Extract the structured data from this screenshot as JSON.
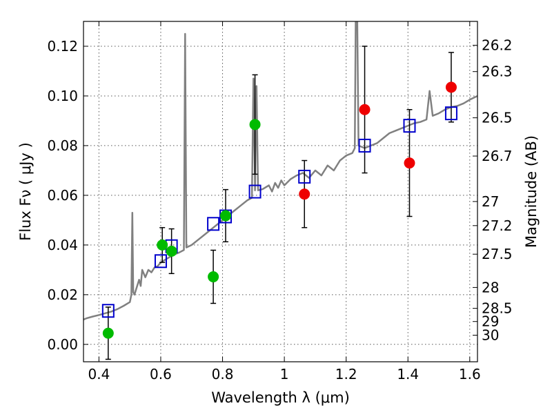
{
  "chart_data": {
    "type": "scatter",
    "xlabel": "Wavelength  λ (μm)",
    "ylabel": "Flux  Fν  ( μJy )",
    "y2label": "Magnitude (AB)",
    "xlim": [
      0.35,
      1.625
    ],
    "ylim": [
      -0.007,
      0.13
    ],
    "grid": true,
    "x_ticks": [
      {
        "value": 0.4,
        "label": "0.4"
      },
      {
        "value": 0.6,
        "label": "0.6"
      },
      {
        "value": 0.8,
        "label": "0.8"
      },
      {
        "value": 1.0,
        "label": "1"
      },
      {
        "value": 1.2,
        "label": "1.2"
      },
      {
        "value": 1.4,
        "label": "1.4"
      },
      {
        "value": 1.6,
        "label": "1.6"
      }
    ],
    "y_ticks": [
      {
        "value": 0.0,
        "label": "0.00"
      },
      {
        "value": 0.02,
        "label": "0.02"
      },
      {
        "value": 0.04,
        "label": "0.04"
      },
      {
        "value": 0.06,
        "label": "0.06"
      },
      {
        "value": 0.08,
        "label": "0.08"
      },
      {
        "value": 0.1,
        "label": "0.10"
      },
      {
        "value": 0.12,
        "label": "0.12"
      }
    ],
    "y2_ticks": [
      {
        "flux": 0.1204,
        "label": "26.2"
      },
      {
        "flux": 0.1098,
        "label": "26.3"
      },
      {
        "flux": 0.0912,
        "label": "26.5"
      },
      {
        "flux": 0.0758,
        "label": "26.7"
      },
      {
        "flux": 0.0575,
        "label": "27"
      },
      {
        "flux": 0.0478,
        "label": "27.2"
      },
      {
        "flux": 0.0363,
        "label": "27.5"
      },
      {
        "flux": 0.0229,
        "label": "28"
      },
      {
        "flux": 0.0145,
        "label": "28.5"
      },
      {
        "flux": 0.0092,
        "label": "29"
      },
      {
        "flux": 0.0037,
        "label": "30"
      }
    ],
    "spectrum": {
      "color": "#808080",
      "points": [
        [
          0.35,
          0.01
        ],
        [
          0.36,
          0.0105
        ],
        [
          0.38,
          0.0112
        ],
        [
          0.4,
          0.0118
        ],
        [
          0.42,
          0.0125
        ],
        [
          0.44,
          0.0132
        ],
        [
          0.46,
          0.0142
        ],
        [
          0.48,
          0.0155
        ],
        [
          0.5,
          0.017
        ],
        [
          0.505,
          0.02
        ],
        [
          0.508,
          0.053
        ],
        [
          0.511,
          0.021
        ],
        [
          0.515,
          0.02
        ],
        [
          0.52,
          0.022
        ],
        [
          0.53,
          0.026
        ],
        [
          0.535,
          0.0235
        ],
        [
          0.54,
          0.03
        ],
        [
          0.55,
          0.027
        ],
        [
          0.56,
          0.03
        ],
        [
          0.57,
          0.029
        ],
        [
          0.58,
          0.031
        ],
        [
          0.59,
          0.0315
        ],
        [
          0.6,
          0.033
        ],
        [
          0.62,
          0.0345
        ],
        [
          0.64,
          0.036
        ],
        [
          0.66,
          0.037
        ],
        [
          0.675,
          0.038
        ],
        [
          0.679,
          0.125
        ],
        [
          0.683,
          0.039
        ],
        [
          0.7,
          0.04
        ],
        [
          0.72,
          0.042
        ],
        [
          0.74,
          0.044
        ],
        [
          0.76,
          0.046
        ],
        [
          0.78,
          0.048
        ],
        [
          0.8,
          0.05
        ],
        [
          0.82,
          0.052
        ],
        [
          0.84,
          0.054
        ],
        [
          0.86,
          0.056
        ],
        [
          0.88,
          0.058
        ],
        [
          0.895,
          0.059
        ],
        [
          0.9,
          0.107
        ],
        [
          0.905,
          0.062
        ],
        [
          0.91,
          0.104
        ],
        [
          0.915,
          0.062
        ],
        [
          0.93,
          0.0625
        ],
        [
          0.95,
          0.064
        ],
        [
          0.96,
          0.0615
        ],
        [
          0.97,
          0.065
        ],
        [
          0.98,
          0.063
        ],
        [
          0.99,
          0.066
        ],
        [
          1.0,
          0.064
        ],
        [
          1.02,
          0.0665
        ],
        [
          1.04,
          0.068
        ],
        [
          1.06,
          0.069
        ],
        [
          1.08,
          0.067
        ],
        [
          1.1,
          0.07
        ],
        [
          1.12,
          0.068
        ],
        [
          1.14,
          0.072
        ],
        [
          1.16,
          0.07
        ],
        [
          1.18,
          0.074
        ],
        [
          1.2,
          0.076
        ],
        [
          1.22,
          0.077
        ],
        [
          1.228,
          0.079
        ],
        [
          1.231,
          0.13
        ],
        [
          1.236,
          0.13
        ],
        [
          1.24,
          0.08
        ],
        [
          1.26,
          0.079
        ],
        [
          1.28,
          0.08
        ],
        [
          1.3,
          0.081
        ],
        [
          1.32,
          0.083
        ],
        [
          1.34,
          0.085
        ],
        [
          1.36,
          0.086
        ],
        [
          1.38,
          0.087
        ],
        [
          1.4,
          0.088
        ],
        [
          1.42,
          0.089
        ],
        [
          1.44,
          0.0895
        ],
        [
          1.46,
          0.0905
        ],
        [
          1.47,
          0.102
        ],
        [
          1.48,
          0.092
        ],
        [
          1.5,
          0.093
        ],
        [
          1.52,
          0.0945
        ],
        [
          1.54,
          0.0955
        ],
        [
          1.56,
          0.096
        ],
        [
          1.58,
          0.097
        ],
        [
          1.6,
          0.0985
        ],
        [
          1.625,
          0.1
        ]
      ]
    },
    "model_photometry": {
      "color": "#0000cc",
      "points": [
        [
          0.43,
          0.0135
        ],
        [
          0.6,
          0.0335
        ],
        [
          0.635,
          0.0395
        ],
        [
          0.77,
          0.0485
        ],
        [
          0.81,
          0.0515
        ],
        [
          0.905,
          0.0615
        ],
        [
          1.065,
          0.0675
        ],
        [
          1.26,
          0.08
        ],
        [
          1.405,
          0.088
        ],
        [
          1.54,
          0.093
        ]
      ]
    },
    "observed_green": {
      "color": "#00bb00",
      "points": [
        {
          "x": 0.43,
          "y": 0.0045,
          "err": 0.0105
        },
        {
          "x": 0.605,
          "y": 0.04,
          "err": 0.007
        },
        {
          "x": 0.635,
          "y": 0.0375,
          "err": 0.009
        },
        {
          "x": 0.77,
          "y": 0.0272,
          "err": 0.0107
        },
        {
          "x": 0.81,
          "y": 0.0518,
          "err": 0.0105
        },
        {
          "x": 0.905,
          "y": 0.0885,
          "err": 0.02
        }
      ]
    },
    "observed_red": {
      "color": "#ee0000",
      "points": [
        {
          "x": 1.065,
          "y": 0.0605,
          "err": 0.0135
        },
        {
          "x": 1.26,
          "y": 0.0945,
          "err": 0.0255
        },
        {
          "x": 1.405,
          "y": 0.073,
          "err": 0.0215
        },
        {
          "x": 1.54,
          "y": 0.1035,
          "err": 0.014
        }
      ]
    }
  }
}
